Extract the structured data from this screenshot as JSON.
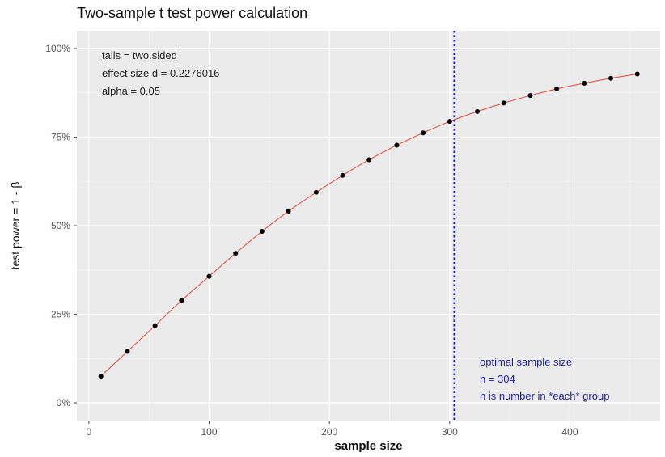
{
  "chart_data": {
    "type": "line",
    "title": "Two-sample t test power calculation",
    "xlabel": "sample size",
    "ylabel": "test power = 1 - β",
    "xlim": [
      -10,
      475
    ],
    "ylim": [
      -0.05,
      1.05
    ],
    "x_ticks": [
      0,
      100,
      200,
      300,
      400
    ],
    "x_tick_labels": [
      "0",
      "100",
      "200",
      "300",
      "400"
    ],
    "y_ticks": [
      0,
      0.25,
      0.5,
      0.75,
      1.0
    ],
    "y_tick_labels": [
      "0%",
      "25%",
      "50%",
      "75%",
      "100%"
    ],
    "grid": true,
    "background": "#ebebeb",
    "curve_color": "#e8463a",
    "point_color": "#000000",
    "vline_color": "#1f1fa8",
    "series": [
      {
        "x": [
          10,
          32,
          55,
          77,
          100,
          122,
          144,
          166,
          189,
          211,
          233,
          256,
          278,
          300,
          323,
          345,
          367,
          389,
          412,
          434,
          456
        ],
        "values": [
          0.075,
          0.145,
          0.218,
          0.289,
          0.357,
          0.422,
          0.484,
          0.541,
          0.594,
          0.642,
          0.686,
          0.727,
          0.762,
          0.794,
          0.822,
          0.846,
          0.867,
          0.886,
          0.902,
          0.916,
          0.928
        ]
      }
    ],
    "vline_x": 304,
    "annotations": {
      "top_left": [
        "tails = two.sided",
        "effect size d = 0.2276016",
        "alpha = 0.05"
      ],
      "optimal": [
        "optimal sample size",
        "n = 304",
        "n is number in *each* group"
      ]
    }
  }
}
